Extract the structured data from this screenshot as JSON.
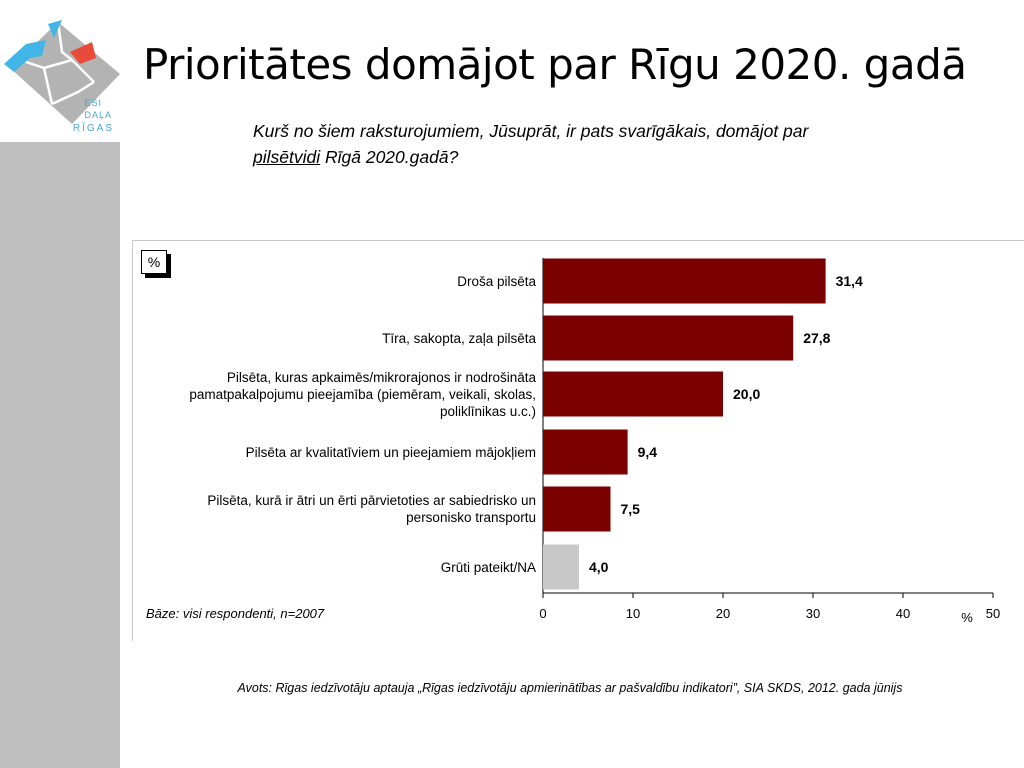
{
  "slide": {
    "title": "Prioritātes domājot par Rīgu 2020. gadā",
    "question_part1": "Kurš no šiem raksturojumiem, Jūsuprāt, ir pats svarīgākais, domājot par",
    "question_underlined": "pilsētvidi",
    "question_part2": " Rīgā 2020.gadā?",
    "source": "Avots: Rīgas iedzīvotāju aptauja „Rīgas iedzīvotāju apmierinātības ar pašvaldību indikatori”, SIA SKDS, 2012. gada jūnijs"
  },
  "logo": {
    "lines": [
      "ESI",
      "DAĻA",
      "RĪGAS"
    ],
    "colors": {
      "river": "#41b6e6",
      "city": "#b3b3b3",
      "highlight": "#e84b37",
      "text": "#41a9d6"
    }
  },
  "chart_data": {
    "type": "bar",
    "orientation": "horizontal",
    "unit_badge": "%",
    "categories": [
      [
        "Droša pilsēta"
      ],
      [
        "Tīra, sakopta, zaļa pilsēta"
      ],
      [
        "Pilsēta, kuras apkaimēs/mikrorajonos ir nodrošināta",
        "pamatpakalpojumu pieejamība (piemēram, veikali, skolas,",
        "poliklīnikas u.c.)"
      ],
      [
        "Pilsēta ar kvalitatīviem un pieejamiem mājokļiem"
      ],
      [
        "Pilsēta, kurā ir ātri un ērti pārvietoties ar sabiedrisko un",
        "personisko transportu"
      ],
      [
        "Grūti pateikt/NA"
      ]
    ],
    "values": [
      31.4,
      27.8,
      20.0,
      9.4,
      7.5,
      4.0
    ],
    "value_labels": [
      "31,4",
      "27,8",
      "20,0",
      "9,4",
      "7,5",
      "4,0"
    ],
    "bar_colors": [
      "#7b0000",
      "#7b0000",
      "#7b0000",
      "#7b0000",
      "#7b0000",
      "#c8c8c8"
    ],
    "xlim": [
      0,
      50
    ],
    "xticks": [
      0,
      10,
      20,
      30,
      40,
      50
    ],
    "xlabel": "%",
    "base_note": "Bāze: visi respondenti, n=2007",
    "grid": false
  }
}
